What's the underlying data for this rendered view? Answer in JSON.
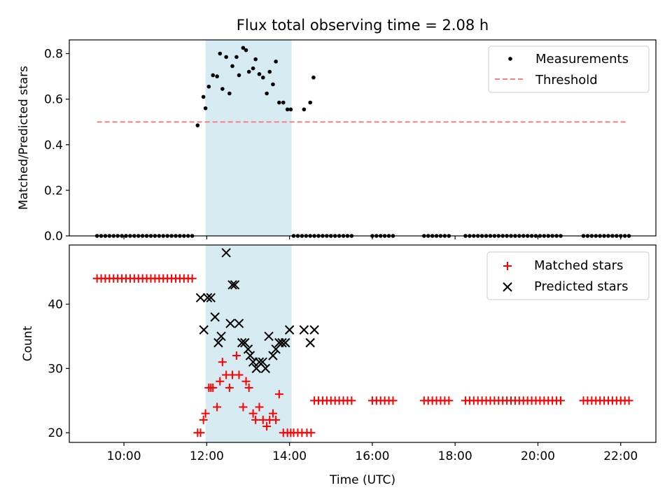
{
  "chart_data": [
    {
      "type": "scatter",
      "title": "Flux total observing time = 2.08 h",
      "xlabel": "",
      "ylabel": "Matched/Predicted stars",
      "ylim": [
        0,
        0.86
      ],
      "yticks": [
        "0.0",
        "0.2",
        "0.4",
        "0.6",
        "0.8"
      ],
      "ytick_values": [
        0.0,
        0.2,
        0.4,
        0.6,
        0.8
      ],
      "x_unit": "hours UTC",
      "xlim": [
        8.68,
        22.85
      ],
      "highlight_span": {
        "x0": 11.97,
        "x1": 14.05,
        "color": "#add8e6"
      },
      "threshold": {
        "value": 0.5,
        "x0": 9.35,
        "x1": 22.15,
        "color": "#ff7f7f"
      },
      "legend": {
        "position": "top-right",
        "entries": [
          {
            "label": "Measurements",
            "marker": "dot",
            "color": "#000000"
          },
          {
            "label": "Threshold",
            "marker": "dashed-line",
            "color": "#ff7f7f"
          }
        ]
      },
      "series": [
        {
          "name": "Measurements",
          "color": "#000000",
          "x": [
            11.78,
            11.92,
            11.97,
            12.05,
            12.15,
            12.25,
            12.32,
            12.38,
            12.47,
            12.55,
            12.62,
            12.72,
            12.78,
            12.88,
            12.95,
            13.02,
            13.12,
            13.18,
            13.27,
            13.36,
            13.45,
            13.52,
            13.6,
            13.67,
            13.75,
            13.85,
            13.95,
            14.03,
            14.35,
            14.5,
            14.58
          ],
          "y": [
            0.485,
            0.61,
            0.56,
            0.655,
            0.705,
            0.7,
            0.8,
            0.645,
            0.785,
            0.625,
            0.745,
            0.785,
            0.705,
            0.825,
            0.815,
            0.72,
            0.735,
            0.775,
            0.71,
            0.695,
            0.625,
            0.72,
            0.665,
            0.765,
            0.585,
            0.585,
            0.555,
            0.555,
            0.555,
            0.585,
            0.695
          ]
        },
        {
          "name": "Measurements (zero)",
          "color": "#000000",
          "zero_runs": [
            [
              9.35,
              11.7
            ],
            [
              14.1,
              15.55
            ],
            [
              16.0,
              16.55
            ],
            [
              17.25,
              17.9
            ],
            [
              18.25,
              20.6
            ],
            [
              21.1,
              22.2
            ]
          ]
        }
      ]
    },
    {
      "type": "scatter",
      "title": "",
      "xlabel": "Time (UTC)",
      "ylabel": "Count",
      "ylim": [
        18.5,
        49.2
      ],
      "yticks": [
        "20",
        "30",
        "40"
      ],
      "ytick_values": [
        20,
        30,
        40
      ],
      "xticks": [
        "10:00",
        "12:00",
        "14:00",
        "16:00",
        "18:00",
        "20:00",
        "22:00"
      ],
      "xtick_values": [
        10,
        12,
        14,
        16,
        18,
        20,
        22
      ],
      "xlim": [
        8.68,
        22.85
      ],
      "highlight_span": {
        "x0": 11.97,
        "x1": 14.05,
        "color": "#add8e6"
      },
      "legend": {
        "position": "top-right",
        "entries": [
          {
            "label": "Matched stars",
            "marker": "plus",
            "color": "#ff0000"
          },
          {
            "label": "Predicted stars",
            "marker": "x",
            "color": "#000000"
          }
        ]
      },
      "series": [
        {
          "name": "Matched stars",
          "color": "#ff0000",
          "x": [
            11.78,
            11.85,
            11.92,
            11.97,
            12.05,
            12.1,
            12.15,
            12.25,
            12.32,
            12.38,
            12.47,
            12.55,
            12.62,
            12.72,
            12.78,
            12.88,
            12.95,
            13.02,
            13.12,
            13.18,
            13.27,
            13.36,
            13.45,
            13.52,
            13.6,
            13.67,
            13.75,
            13.85,
            13.95,
            14.03,
            14.1,
            14.2,
            14.3,
            14.42,
            14.52
          ],
          "y": [
            20,
            20,
            22,
            23,
            27,
            27,
            27,
            24,
            28,
            31,
            29,
            27,
            29,
            32,
            29,
            24,
            28,
            27,
            23,
            22,
            24,
            22,
            21,
            22,
            23,
            22,
            26,
            20,
            20,
            20,
            20,
            20,
            20,
            20,
            20
          ]
        },
        {
          "name": "Matched stars (before)",
          "color": "#ff0000",
          "runs": [
            {
              "x0": 9.35,
              "x1": 11.7,
              "y": 44
            }
          ]
        },
        {
          "name": "Matched stars (after)",
          "color": "#ff0000",
          "runs": [
            {
              "x0": 14.6,
              "x1": 15.55,
              "y": 25
            },
            {
              "x0": 16.0,
              "x1": 16.55,
              "y": 25
            },
            {
              "x0": 17.25,
              "x1": 17.9,
              "y": 25
            },
            {
              "x0": 18.25,
              "x1": 20.6,
              "y": 25
            },
            {
              "x0": 21.1,
              "x1": 22.2,
              "y": 25
            }
          ]
        },
        {
          "name": "Predicted stars",
          "color": "#000000",
          "x": [
            11.85,
            11.93,
            12.02,
            12.1,
            12.2,
            12.28,
            12.35,
            12.47,
            12.57,
            12.62,
            12.68,
            12.78,
            12.85,
            12.92,
            13.0,
            13.05,
            13.12,
            13.2,
            13.27,
            13.35,
            13.42,
            13.5,
            13.6,
            13.67,
            13.75,
            13.82,
            13.9,
            14.0,
            14.35,
            14.5,
            14.6
          ],
          "y": [
            41,
            36,
            41,
            41,
            38,
            34,
            35,
            48,
            37,
            43,
            43,
            37,
            34,
            34,
            33,
            32,
            31,
            30,
            31,
            31,
            30,
            35,
            32,
            33,
            34,
            34,
            34,
            36,
            36,
            34,
            36
          ]
        }
      ]
    }
  ]
}
